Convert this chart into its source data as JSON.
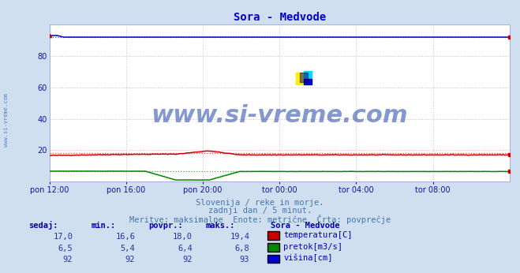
{
  "title": "Sora - Medvode",
  "title_color": "#0000cc",
  "bg_color": "#d0dff0",
  "plot_bg_color": "#ffffff",
  "grid_color": "#ffaaaa",
  "grid_vcolor": "#ddcccc",
  "watermark": "www.si-vreme.com",
  "subtitle_lines": [
    "Slovenija / reke in morje.",
    "zadnji dan / 5 minut.",
    "Meritve: maksimalne  Enote: metrične  Črta: povprečje"
  ],
  "xlabel_ticks": [
    "pon 12:00",
    "pon 16:00",
    "pon 20:00",
    "tor 00:00",
    "tor 04:00",
    "tor 08:00"
  ],
  "n_points": 289,
  "temp_avg": 18.0,
  "temp_color": "#cc0000",
  "temp_avg_color": "#ee4444",
  "pretok_avg": 6.4,
  "pretok_color": "#008800",
  "pretok_avg_color": "#44aa44",
  "visina_avg": 92,
  "visina_color": "#0000cc",
  "visina_avg_color": "#4444ee",
  "ylim": [
    0,
    100
  ],
  "yticks": [
    20,
    40,
    60,
    80
  ],
  "left_label": "www.si-vreme.com",
  "table_headers": [
    "sedaj:",
    "min.:",
    "povpr.:",
    "maks.:"
  ],
  "table_col1": [
    "17,0",
    "6,5",
    "92"
  ],
  "table_col2": [
    "16,6",
    "5,4",
    "92"
  ],
  "table_col3": [
    "18,0",
    "6,4",
    "92"
  ],
  "table_col4": [
    "19,4",
    "6,8",
    "93"
  ],
  "legend_title": "Sora - Medvode",
  "legend_labels": [
    "temperatura[C]",
    "pretok[m3/s]",
    "višina[cm]"
  ],
  "legend_colors": [
    "#cc0000",
    "#008800",
    "#0000cc"
  ]
}
